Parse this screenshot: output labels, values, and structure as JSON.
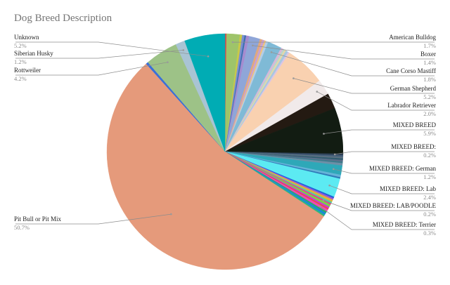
{
  "chart_data": {
    "type": "pie",
    "title": "Dog Breed Description",
    "slices": [
      {
        "name": "",
        "value": 0.2,
        "color": "#d44d4d"
      },
      {
        "name": "American Bulldog",
        "value": 1.7,
        "color": "#9ec46a"
      },
      {
        "name": "",
        "value": 0.3,
        "color": "#c9c947"
      },
      {
        "name": "",
        "value": 0.3,
        "color": "#7b8fd1"
      },
      {
        "name": "",
        "value": 0.2,
        "color": "#3a6fb0"
      },
      {
        "name": "",
        "value": 0.4,
        "color": "#a58bcf"
      },
      {
        "name": "Boxer",
        "value": 1.4,
        "color": "#8fa6d8"
      },
      {
        "name": "",
        "value": 0.3,
        "color": "#e2a87c"
      },
      {
        "name": "",
        "value": 0.3,
        "color": "#c8a2d0"
      },
      {
        "name": "",
        "value": 0.2,
        "color": "#f0c27a"
      },
      {
        "name": "",
        "value": 0.3,
        "color": "#b5cde6"
      },
      {
        "name": "Cane Corso Mastiff",
        "value": 1.8,
        "color": "#7fbad6"
      },
      {
        "name": "",
        "value": 0.3,
        "color": "#d6b8d9"
      },
      {
        "name": "",
        "value": 0.2,
        "color": "#b8d9c8"
      },
      {
        "name": "",
        "value": 0.2,
        "color": "#e8d7a6"
      },
      {
        "name": "",
        "value": 0.3,
        "color": "#a8c8e0"
      },
      {
        "name": "",
        "value": 0.2,
        "color": "#d8c4e8"
      },
      {
        "name": "German Shepherd",
        "value": 5.2,
        "color": "#f9d1b0"
      },
      {
        "name": "Labrador Retriever",
        "value": 2.0,
        "color": "#f1eaea"
      },
      {
        "name": "",
        "value": 2.0,
        "color": "#241a12"
      },
      {
        "name": "MIXED BREED",
        "value": 5.9,
        "color": "#121c12"
      },
      {
        "name": "MIXED BREED:",
        "value": 0.2,
        "color": "#2b3d52"
      },
      {
        "name": "",
        "value": 0.2,
        "color": "#445e7a"
      },
      {
        "name": "",
        "value": 0.2,
        "color": "#5a7080"
      },
      {
        "name": "",
        "value": 0.2,
        "color": "#2f5b6e"
      },
      {
        "name": "",
        "value": 0.2,
        "color": "#5c6e8a"
      },
      {
        "name": "",
        "value": 0.2,
        "color": "#3c7a8a"
      },
      {
        "name": "",
        "value": 0.3,
        "color": "#6d8fa6"
      },
      {
        "name": "MIXED BREED: German",
        "value": 1.2,
        "color": "#2ea8b8"
      },
      {
        "name": "",
        "value": 0.3,
        "color": "#64b4d8"
      },
      {
        "name": "",
        "value": 0.2,
        "color": "#2f7ab8"
      },
      {
        "name": "MIXED BREED: Lab",
        "value": 2.4,
        "color": "#5ceaf2"
      },
      {
        "name": "",
        "value": 0.2,
        "color": "#1e64d8"
      },
      {
        "name": "",
        "value": 0.2,
        "color": "#9c58d8"
      },
      {
        "name": "",
        "value": 0.3,
        "color": "#e0b23a"
      },
      {
        "name": "",
        "value": 0.2,
        "color": "#4ccfa8"
      },
      {
        "name": "MIXED BREED: LAB/POODLE",
        "value": 0.2,
        "color": "#ec3a8c"
      },
      {
        "name": "",
        "value": 0.3,
        "color": "#7ad04a"
      },
      {
        "name": "",
        "value": 0.2,
        "color": "#c83ad4"
      },
      {
        "name": "",
        "value": 0.2,
        "color": "#e84a4a"
      },
      {
        "name": "MIXED BREED: Terrier",
        "value": 0.3,
        "color": "#f048b8"
      },
      {
        "name": "",
        "value": 0.2,
        "color": "#2aa86a"
      },
      {
        "name": "",
        "value": 0.3,
        "color": "#1a8cd6"
      },
      {
        "name": "",
        "value": 0.2,
        "color": "#30b87a"
      },
      {
        "name": "Pit Bull or Pit Mix",
        "value": 50.7,
        "color": "#e59a7b"
      },
      {
        "name": "",
        "value": 0.3,
        "color": "#3a6fd8"
      },
      {
        "name": "Rottweiler",
        "value": 4.2,
        "color": "#9dc287"
      },
      {
        "name": "Siberian Husky",
        "value": 1.2,
        "color": "#a9c4d4"
      },
      {
        "name": "Unknown",
        "value": 5.2,
        "color": "#00acb4"
      }
    ],
    "labels": [
      {
        "name": "Unknown",
        "pct": "5.2%"
      },
      {
        "name": "Siberian Husky",
        "pct": "1.2%"
      },
      {
        "name": "Rottweiler",
        "pct": "4.2%"
      },
      {
        "name": "Pit Bull or Pit Mix",
        "pct": "50.7%"
      },
      {
        "name": "American Bulldog",
        "pct": "1.7%"
      },
      {
        "name": "Boxer",
        "pct": "1.4%"
      },
      {
        "name": "Cane Corso Mastiff",
        "pct": "1.8%"
      },
      {
        "name": "German Shepherd",
        "pct": "5.2%"
      },
      {
        "name": "Labrador Retriever",
        "pct": "2.0%"
      },
      {
        "name": "MIXED BREED",
        "pct": "5.9%"
      },
      {
        "name": "MIXED BREED:",
        "pct": "0.2%"
      },
      {
        "name": "MIXED BREED: German",
        "pct": "1.2%"
      },
      {
        "name": "MIXED BREED: Lab",
        "pct": "2.4%"
      },
      {
        "name": "MIXED BREED: LAB/POODLE",
        "pct": "0.2%"
      },
      {
        "name": "MIXED BREED: Terrier",
        "pct": "0.3%"
      }
    ]
  }
}
